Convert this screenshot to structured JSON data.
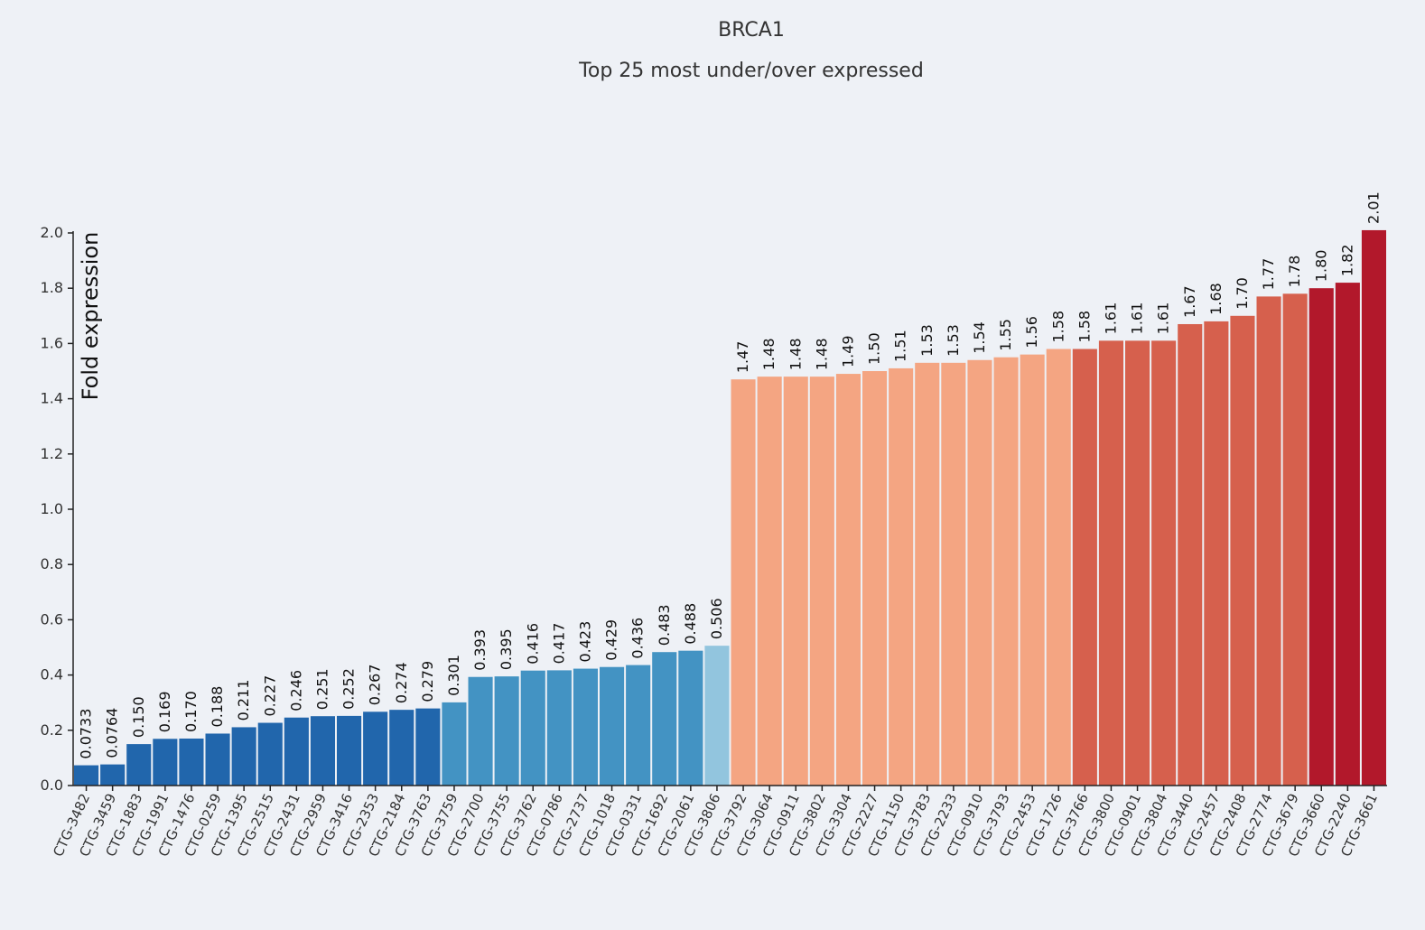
{
  "chart_data": {
    "type": "bar",
    "title": "BRCA1",
    "subtitle": "Top 25 most under/over expressed",
    "ylabel": "Fold expression",
    "xlabel": "",
    "ylim": [
      0,
      2.0
    ],
    "yticks": [
      "0.0",
      "0.2",
      "0.4",
      "0.6",
      "0.8",
      "1.0",
      "1.2",
      "1.4",
      "1.6",
      "1.8",
      "2.0"
    ],
    "categories": [
      "CTG-3482",
      "CTG-3459",
      "CTG-1883",
      "CTG-1991",
      "CTG-1476",
      "CTG-0259",
      "CTG-1395",
      "CTG-2515",
      "CTG-2431",
      "CTG-2959",
      "CTG-3416",
      "CTG-2353",
      "CTG-2184",
      "CTG-3763",
      "CTG-3759",
      "CTG-2700",
      "CTG-3755",
      "CTG-3762",
      "CTG-0786",
      "CTG-2737",
      "CTG-1018",
      "CTG-0331",
      "CTG-1692",
      "CTG-2061",
      "CTG-3806",
      "CTG-3792",
      "CTG-3064",
      "CTG-0911",
      "CTG-3802",
      "CTG-3304",
      "CTG-2227",
      "CTG-1150",
      "CTG-3783",
      "CTG-2233",
      "CTG-0910",
      "CTG-3793",
      "CTG-2453",
      "CTG-1726",
      "CTG-3766",
      "CTG-3800",
      "CTG-0901",
      "CTG-3804",
      "CTG-3440",
      "CTG-2457",
      "CTG-2408",
      "CTG-2774",
      "CTG-3679",
      "CTG-3660",
      "CTG-2240",
      "CTG-3661"
    ],
    "values": [
      0.0733,
      0.0764,
      0.15,
      0.169,
      0.17,
      0.188,
      0.211,
      0.227,
      0.246,
      0.251,
      0.252,
      0.267,
      0.274,
      0.279,
      0.301,
      0.393,
      0.395,
      0.416,
      0.417,
      0.423,
      0.429,
      0.436,
      0.483,
      0.488,
      0.506,
      1.47,
      1.48,
      1.48,
      1.48,
      1.49,
      1.5,
      1.51,
      1.53,
      1.53,
      1.54,
      1.55,
      1.56,
      1.58,
      1.58,
      1.61,
      1.61,
      1.61,
      1.67,
      1.68,
      1.7,
      1.77,
      1.78,
      1.8,
      1.82,
      2.01
    ],
    "labels": [
      "0.0733",
      "0.0764",
      "0.150",
      "0.169",
      "0.170",
      "0.188",
      "0.211",
      "0.227",
      "0.246",
      "0.251",
      "0.252",
      "0.267",
      "0.274",
      "0.279",
      "0.301",
      "0.393",
      "0.395",
      "0.416",
      "0.417",
      "0.423",
      "0.429",
      "0.436",
      "0.483",
      "0.488",
      "0.506",
      "1.47",
      "1.48",
      "1.48",
      "1.48",
      "1.49",
      "1.50",
      "1.51",
      "1.53",
      "1.53",
      "1.54",
      "1.55",
      "1.56",
      "1.58",
      "1.58",
      "1.61",
      "1.61",
      "1.61",
      "1.67",
      "1.68",
      "1.70",
      "1.77",
      "1.78",
      "1.80",
      "1.82",
      "2.01"
    ],
    "colors": [
      "#2166ac",
      "#2166ac",
      "#2166ac",
      "#2166ac",
      "#2166ac",
      "#2166ac",
      "#2166ac",
      "#2166ac",
      "#2166ac",
      "#2166ac",
      "#2166ac",
      "#2166ac",
      "#2166ac",
      "#2166ac",
      "#4393c3",
      "#4393c3",
      "#4393c3",
      "#4393c3",
      "#4393c3",
      "#4393c3",
      "#4393c3",
      "#4393c3",
      "#4393c3",
      "#4393c3",
      "#92c5de",
      "#f4a582",
      "#f4a582",
      "#f4a582",
      "#f4a582",
      "#f4a582",
      "#f4a582",
      "#f4a582",
      "#f4a582",
      "#f4a582",
      "#f4a582",
      "#f4a582",
      "#f4a582",
      "#f4a582",
      "#d6604d",
      "#d6604d",
      "#d6604d",
      "#d6604d",
      "#d6604d",
      "#d6604d",
      "#d6604d",
      "#d6604d",
      "#d6604d",
      "#b2182b",
      "#b2182b",
      "#b2182b"
    ],
    "background": "#eef1f6",
    "grid": false,
    "legend": "none"
  }
}
